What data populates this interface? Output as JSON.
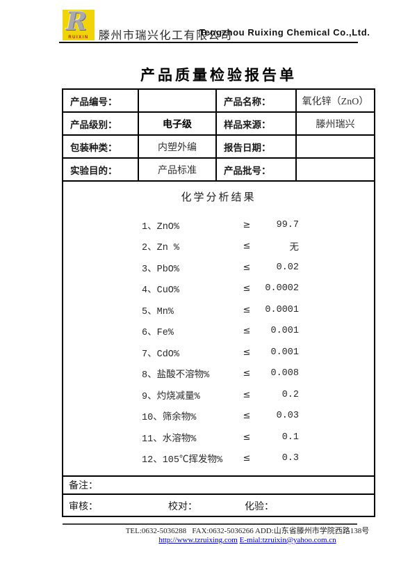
{
  "header": {
    "logo_letter": "R",
    "logo_brand": "RUIXIN",
    "company_cn": "滕州市瑞兴化工有限公司",
    "company_en": "Tengzhou Ruixing Chemical Co.,Ltd."
  },
  "title": "产品质量检验报告单",
  "info_table": {
    "rows": [
      {
        "label1": "产品编号：",
        "value1": "",
        "label2": "产品名称：",
        "value2": "氧化锌（ZnO）"
      },
      {
        "label1": "产品级别：",
        "value1": "电子级",
        "label2": "样品来源：",
        "value2": "滕州瑞兴"
      },
      {
        "label1": "包装种类：",
        "value1": "内塑外编",
        "label2": "报告日期：",
        "value2": ""
      },
      {
        "label1": "实验目的：",
        "value1": "产品标准",
        "label2": "产品批号：",
        "value2": ""
      }
    ]
  },
  "analysis": {
    "title": "化学分析结果",
    "items": [
      {
        "name": "1、ZnO%",
        "symbol": "≥",
        "value": "99.7"
      },
      {
        "name": "2、Zn %",
        "symbol": "≤",
        "value": "无"
      },
      {
        "name": "3、PbO%",
        "symbol": "≤",
        "value": "0.02"
      },
      {
        "name": "4、CuO%",
        "symbol": "≤",
        "value": "0.0002"
      },
      {
        "name": "5、Mn%",
        "symbol": "≤",
        "value": "0.0001"
      },
      {
        "name": "6、Fe%",
        "symbol": "≤",
        "value": "0.001"
      },
      {
        "name": "7、CdO%",
        "symbol": "≤",
        "value": "0.001"
      },
      {
        "name": "8、盐酸不溶物%",
        "symbol": "≤",
        "value": "0.008"
      },
      {
        "name": "9、灼烧减量%",
        "symbol": "≤",
        "value": "0.2"
      },
      {
        "name": "10、筛余物%",
        "symbol": "≤",
        "value": "0.03"
      },
      {
        "name": "11、水溶物%",
        "symbol": "≤",
        "value": "0.1"
      },
      {
        "name": "12、105℃挥发物%",
        "symbol": "≤",
        "value": "0.3"
      }
    ]
  },
  "remarks_label": "备注：",
  "signoff": {
    "review": "审核：",
    "proofread": "校对：",
    "test": "化验："
  },
  "footer": {
    "line1": "TEL:0632-5036288   FAX:0632-5036266 ADD:山东省滕州市学院西路138号",
    "url": "http://www.tzruixing.com",
    "email": "E-mial:tzruixin@yahoo.com.cn"
  },
  "colors": {
    "logo_yellow": "#f0d408",
    "logo_red": "#bb1100",
    "link_blue": "#0000bb"
  }
}
